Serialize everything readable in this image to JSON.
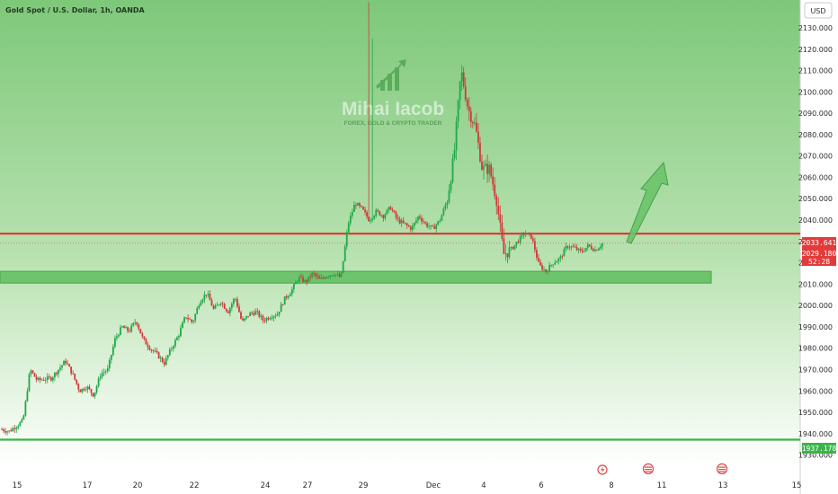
{
  "header": {
    "title": "Gold Spot / U.S. Dollar, 1h, OANDA",
    "currency_button": "USD"
  },
  "watermark": {
    "name": "Mihai Iacob",
    "tagline": "FOREX, GOLD & CRYPTO TRADER"
  },
  "price_tags": {
    "resistance": "2033.641",
    "current_price": "2029.180",
    "countdown": "52:28",
    "support": "1937.178"
  },
  "colors": {
    "bull": "#22a84a",
    "bear": "#cf3a3a",
    "background_top": "#7ec87a",
    "background_bottom": "#ffffff",
    "resistance_line": "#e23b3b",
    "support_line": "#3ab54a",
    "zone": "#5fbf5f",
    "arrow": "#6cc46a"
  },
  "chart_data": {
    "type": "candlestick",
    "title": "Gold Spot / U.S. Dollar, 1h, OANDA",
    "y_unit": "USD",
    "ylim": [
      1927,
      2142
    ],
    "yticks": [
      "2130.000",
      "2120.000",
      "2110.000",
      "2100.000",
      "2090.000",
      "2080.000",
      "2070.000",
      "2060.000",
      "2050.000",
      "2040.000",
      "2030.000",
      "2020.000",
      "2010.000",
      "2000.000",
      "1990.000",
      "1980.000",
      "1970.000",
      "1960.000",
      "1950.000",
      "1940.000",
      "1930.000"
    ],
    "xticks": [
      "15",
      "17",
      "20",
      "22",
      "24",
      "27",
      "29",
      "Dec",
      "4",
      "6",
      "8",
      "11",
      "13",
      "15"
    ],
    "horizontal_lines": [
      {
        "name": "resistance",
        "price": 2033.641
      },
      {
        "name": "support",
        "price": 1937.178
      }
    ],
    "zones": [
      {
        "name": "demand-zone",
        "from": 2010.5,
        "to": 2016.0
      }
    ],
    "path_points": [
      [
        0,
        1942
      ],
      [
        1,
        1941
      ],
      [
        3,
        1946
      ],
      [
        4,
        1970
      ],
      [
        5,
        1965
      ],
      [
        7,
        1966
      ],
      [
        9,
        1974
      ],
      [
        10,
        1968
      ],
      [
        11,
        1960
      ],
      [
        12,
        1962
      ],
      [
        13,
        1958
      ],
      [
        14,
        1968
      ],
      [
        15,
        1970
      ],
      [
        16,
        1984
      ],
      [
        17,
        1990
      ],
      [
        18,
        1988
      ],
      [
        19,
        1993
      ],
      [
        20,
        1984
      ],
      [
        21,
        1980
      ],
      [
        22,
        1977
      ],
      [
        23,
        1973
      ],
      [
        24,
        1980
      ],
      [
        25,
        1986
      ],
      [
        26,
        1995
      ],
      [
        27,
        1992
      ],
      [
        28,
        2002
      ],
      [
        29,
        2006
      ],
      [
        30,
        1998
      ],
      [
        31,
        2002
      ],
      [
        32,
        1997
      ],
      [
        33,
        2004
      ],
      [
        34,
        1992
      ],
      [
        35,
        1996
      ],
      [
        36,
        1997
      ],
      [
        37,
        1993
      ],
      [
        38,
        1995
      ],
      [
        39,
        1996
      ],
      [
        40,
        2003
      ],
      [
        41,
        2007
      ],
      [
        42,
        2013
      ],
      [
        43,
        2011
      ],
      [
        44,
        2015
      ],
      [
        45,
        2012
      ],
      [
        46,
        2014
      ],
      [
        47,
        2015
      ],
      [
        48,
        2013
      ],
      [
        49,
        2038
      ],
      [
        50,
        2048
      ],
      [
        51,
        2045
      ],
      [
        52,
        2040
      ],
      [
        53,
        2044
      ],
      [
        54,
        2042
      ],
      [
        55,
        2046
      ],
      [
        56,
        2040
      ],
      [
        57,
        2038
      ],
      [
        58,
        2036
      ],
      [
        59,
        2042
      ],
      [
        60,
        2038
      ],
      [
        61,
        2036
      ],
      [
        62,
        2040
      ],
      [
        63,
        2049
      ],
      [
        64,
        2070
      ],
      [
        65,
        2110
      ],
      [
        66,
        2092
      ],
      [
        67,
        2084
      ],
      [
        68,
        2064
      ],
      [
        69,
        2064
      ],
      [
        70,
        2050
      ],
      [
        71,
        2024
      ],
      [
        72,
        2026
      ],
      [
        73,
        2030
      ],
      [
        74,
        2034
      ],
      [
        75,
        2032
      ],
      [
        76,
        2019
      ],
      [
        77,
        2016
      ],
      [
        78,
        2020
      ],
      [
        79,
        2022
      ],
      [
        80,
        2028
      ],
      [
        81,
        2027
      ],
      [
        82,
        2025
      ],
      [
        83,
        2028
      ],
      [
        84,
        2026
      ],
      [
        85,
        2029
      ]
    ]
  }
}
